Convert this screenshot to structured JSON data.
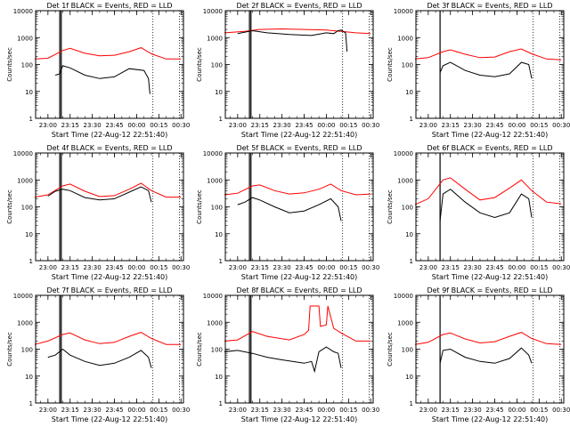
{
  "chart_data": {
    "type": "line",
    "x_ticks": [
      "23:00",
      "23:15",
      "23:30",
      "23:45",
      "00:00",
      "00:15",
      "00:30"
    ],
    "y_ticks": [
      "1",
      "10",
      "100",
      "1000",
      "10000"
    ],
    "xlim": [
      "22:51:40",
      "00:31:40"
    ],
    "ylim": [
      1,
      10000
    ],
    "y_scale": "log",
    "ylabel": "Counts/sec",
    "xlabel": "Start Time (22-Aug-12 22:51:40)",
    "colors": {
      "events": "#000000",
      "lld": "#ff0000"
    },
    "panels": [
      {
        "title": "Det 1f BLACK = Events, RED = LLD",
        "vlines": {
          "solid": [
            "23:08",
            "23:09"
          ],
          "dotted": [
            "00:11",
            "00:29"
          ]
        },
        "events": {
          "x": [
            "23:05",
            "23:08",
            "23:10",
            "23:15",
            "23:25",
            "23:35",
            "23:45",
            "23:55",
            "00:05",
            "00:08",
            "00:09"
          ],
          "y": [
            40,
            45,
            90,
            75,
            40,
            30,
            35,
            70,
            60,
            30,
            8
          ]
        },
        "lld": {
          "x": [
            "22:51",
            "23:00",
            "23:10",
            "23:15",
            "23:25",
            "23:35",
            "23:45",
            "23:55",
            "00:03",
            "00:10",
            "00:20",
            "00:30"
          ],
          "y": [
            160,
            170,
            330,
            400,
            260,
            210,
            220,
            300,
            420,
            250,
            160,
            160
          ]
        }
      },
      {
        "title": "Det 2f BLACK = Events, RED = LLD",
        "vlines": {
          "solid": [
            "23:08",
            "23:09"
          ],
          "dotted": [
            "00:11",
            "00:29"
          ]
        },
        "events": {
          "x": [
            "23:00",
            "23:05",
            "23:10",
            "23:20",
            "23:35",
            "23:50",
            "00:00",
            "00:05",
            "00:08",
            "00:10",
            "00:13",
            "00:14"
          ],
          "y": [
            1400,
            1600,
            1800,
            1500,
            1300,
            1200,
            1500,
            1400,
            1800,
            1900,
            1500,
            300
          ]
        },
        "lld": {
          "x": [
            "22:51",
            "23:05",
            "23:15",
            "23:30",
            "23:45",
            "00:00",
            "00:10",
            "00:20",
            "00:30"
          ],
          "y": [
            1500,
            1700,
            2000,
            2100,
            2000,
            1900,
            1700,
            1500,
            1400
          ]
        }
      },
      {
        "title": "Det 3f BLACK = Events, RED = LLD",
        "vlines": {
          "solid": [
            "23:08"
          ],
          "dotted": [
            "00:11",
            "00:29"
          ]
        },
        "events": {
          "x": [
            "23:08",
            "23:10",
            "23:15",
            "23:25",
            "23:35",
            "23:45",
            "23:55",
            "00:03",
            "00:08",
            "00:10"
          ],
          "y": [
            50,
            90,
            120,
            60,
            40,
            35,
            45,
            120,
            100,
            30
          ]
        },
        "lld": {
          "x": [
            "22:51",
            "23:00",
            "23:10",
            "23:15",
            "23:25",
            "23:35",
            "23:45",
            "23:55",
            "00:03",
            "00:10",
            "00:20",
            "00:30"
          ],
          "y": [
            160,
            180,
            300,
            350,
            240,
            180,
            190,
            300,
            380,
            250,
            160,
            150
          ]
        }
      },
      {
        "title": "Det 4f BLACK = Events, RED = LLD",
        "vlines": {
          "solid": [
            "23:08",
            "23:09"
          ],
          "dotted": [
            "00:11",
            "00:29"
          ]
        },
        "events": {
          "x": [
            "23:00",
            "23:05",
            "23:10",
            "23:15",
            "23:25",
            "23:35",
            "23:45",
            "23:55",
            "00:03",
            "00:08",
            "00:10"
          ],
          "y": [
            250,
            380,
            450,
            400,
            220,
            180,
            200,
            350,
            550,
            400,
            150
          ]
        },
        "lld": {
          "x": [
            "22:51",
            "23:00",
            "23:10",
            "23:15",
            "23:25",
            "23:35",
            "23:45",
            "23:55",
            "00:03",
            "00:10",
            "00:20",
            "00:30"
          ],
          "y": [
            230,
            280,
            600,
            700,
            380,
            240,
            260,
            450,
            750,
            400,
            230,
            230
          ]
        }
      },
      {
        "title": "Det 5f BLACK = Events, RED = LLD",
        "vlines": {
          "solid": [
            "23:08",
            "23:09"
          ],
          "dotted": [
            "00:11",
            "00:29"
          ]
        },
        "events": {
          "x": [
            "23:00",
            "23:05",
            "23:10",
            "23:15",
            "23:25",
            "23:35",
            "23:45",
            "23:55",
            "00:03",
            "00:08",
            "00:10"
          ],
          "y": [
            120,
            150,
            220,
            180,
            100,
            60,
            70,
            120,
            200,
            100,
            30
          ]
        },
        "lld": {
          "x": [
            "22:51",
            "23:00",
            "23:10",
            "23:15",
            "23:25",
            "23:35",
            "23:45",
            "23:55",
            "00:03",
            "00:10",
            "00:20",
            "00:30"
          ],
          "y": [
            280,
            320,
            600,
            650,
            400,
            300,
            330,
            450,
            700,
            400,
            280,
            300
          ]
        }
      },
      {
        "title": "Det 6f BLACK = Events, RED = LLD",
        "vlines": {
          "solid": [
            "23:08"
          ],
          "dotted": [
            "00:11",
            "00:29"
          ]
        },
        "events": {
          "x": [
            "23:08",
            "23:10",
            "23:15",
            "23:25",
            "23:35",
            "23:45",
            "23:55",
            "00:03",
            "00:08",
            "00:10"
          ],
          "y": [
            30,
            300,
            450,
            150,
            60,
            40,
            60,
            300,
            200,
            40
          ]
        },
        "lld": {
          "x": [
            "22:51",
            "23:00",
            "23:10",
            "23:15",
            "23:25",
            "23:35",
            "23:45",
            "23:55",
            "00:03",
            "00:10",
            "00:20",
            "00:30"
          ],
          "y": [
            120,
            200,
            1000,
            1200,
            450,
            180,
            220,
            500,
            1000,
            400,
            150,
            130
          ]
        }
      },
      {
        "title": "Det 7f BLACK = Events, RED = LLD",
        "vlines": {
          "solid": [
            "23:08",
            "23:09"
          ],
          "dotted": [
            "00:11",
            "00:29"
          ]
        },
        "events": {
          "x": [
            "23:00",
            "23:05",
            "23:10",
            "23:15",
            "23:25",
            "23:35",
            "23:45",
            "23:55",
            "00:03",
            "00:08",
            "00:10"
          ],
          "y": [
            50,
            60,
            100,
            60,
            35,
            25,
            30,
            50,
            90,
            50,
            20
          ]
        },
        "lld": {
          "x": [
            "22:51",
            "23:00",
            "23:10",
            "23:15",
            "23:25",
            "23:35",
            "23:45",
            "23:55",
            "00:03",
            "00:10",
            "00:20",
            "00:30"
          ],
          "y": [
            150,
            200,
            350,
            400,
            220,
            160,
            180,
            300,
            420,
            250,
            150,
            150
          ]
        }
      },
      {
        "title": "Det 8f BLACK = Events, RED = LLD",
        "vlines": {
          "solid": [
            "23:08",
            "23:09"
          ],
          "dotted": [
            "00:11",
            "00:29"
          ]
        },
        "events": {
          "x": [
            "22:51",
            "23:00",
            "23:10",
            "23:20",
            "23:30",
            "23:45",
            "23:50",
            "23:52",
            "23:55",
            "00:00",
            "00:05",
            "00:08",
            "00:10"
          ],
          "y": [
            80,
            90,
            70,
            50,
            40,
            30,
            35,
            15,
            80,
            120,
            80,
            70,
            20
          ]
        },
        "lld": {
          "x": [
            "22:51",
            "23:00",
            "23:10",
            "23:20",
            "23:35",
            "23:45",
            "23:48",
            "23:49",
            "23:55",
            "23:56",
            "00:00",
            "00:01",
            "00:05",
            "00:10",
            "00:20",
            "00:30"
          ],
          "y": [
            200,
            220,
            450,
            300,
            220,
            350,
            500,
            4000,
            4000,
            700,
            800,
            4000,
            600,
            400,
            200,
            200
          ]
        }
      },
      {
        "title": "Det 9f BLACK = Events, RED = LLD",
        "vlines": {
          "solid": [
            "23:08"
          ],
          "dotted": [
            "00:11",
            "00:29"
          ]
        },
        "events": {
          "x": [
            "23:08",
            "23:10",
            "23:15",
            "23:25",
            "23:35",
            "23:45",
            "23:55",
            "00:03",
            "00:08",
            "00:10"
          ],
          "y": [
            30,
            90,
            100,
            50,
            35,
            30,
            45,
            110,
            60,
            30
          ]
        },
        "lld": {
          "x": [
            "22:51",
            "23:00",
            "23:10",
            "23:15",
            "23:25",
            "23:35",
            "23:45",
            "23:55",
            "00:03",
            "00:10",
            "00:20",
            "00:30"
          ],
          "y": [
            150,
            180,
            350,
            400,
            240,
            170,
            190,
            300,
            420,
            250,
            160,
            150
          ]
        }
      }
    ]
  }
}
